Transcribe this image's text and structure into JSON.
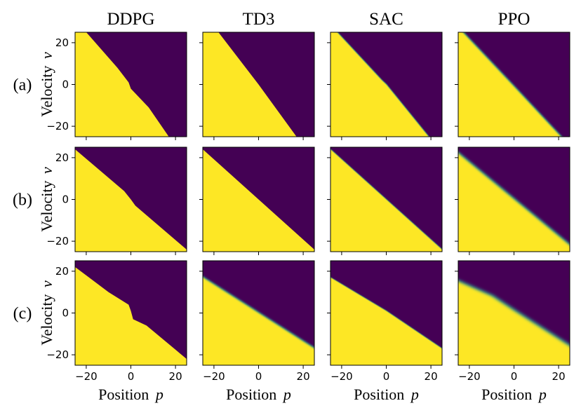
{
  "chart_data": {
    "type": "heatmap",
    "description_colors": {
      "yellow": "#fde725",
      "purple": "#440154",
      "teal": "#2a9d8f"
    },
    "columns": [
      "DDPG",
      "TD3",
      "SAC",
      "PPO"
    ],
    "rows": [
      "(a)",
      "(b)",
      "(c)"
    ],
    "xlabel": "Position",
    "xvar": "p",
    "ylabel": "Velocity",
    "yvar": "v",
    "xlim": [
      -25,
      25
    ],
    "ylim": [
      -25,
      25
    ],
    "xticks": [
      -20,
      0,
      20
    ],
    "yticks": [
      20,
      0,
      -20
    ],
    "xtick_labels": [
      "−20",
      "0",
      "20"
    ],
    "ytick_labels": [
      "20",
      "0",
      "−20"
    ],
    "panels": [
      {
        "row": 0,
        "col": 0,
        "boundary": [
          [
            -20,
            25
          ],
          [
            -6,
            8
          ],
          [
            -1,
            1
          ],
          [
            0,
            -2
          ],
          [
            8,
            -11
          ],
          [
            17,
            -25
          ]
        ],
        "blur": 0.0
      },
      {
        "row": 0,
        "col": 1,
        "boundary": [
          [
            -18,
            25
          ],
          [
            0,
            0
          ],
          [
            17,
            -25
          ]
        ],
        "blur": 0.0
      },
      {
        "row": 0,
        "col": 2,
        "boundary": [
          [
            -22,
            25
          ],
          [
            -2,
            2
          ],
          [
            0,
            0
          ],
          [
            19,
            -25
          ]
        ],
        "blur": 0.4
      },
      {
        "row": 0,
        "col": 3,
        "boundary": [
          [
            -23,
            25
          ],
          [
            0,
            -1
          ],
          [
            21,
            -25
          ]
        ],
        "blur": 0.7
      },
      {
        "row": 1,
        "col": 0,
        "boundary": [
          [
            -25,
            24
          ],
          [
            -3,
            4
          ],
          [
            0,
            0
          ],
          [
            2,
            -3
          ],
          [
            25,
            -24
          ]
        ],
        "blur": 0.0
      },
      {
        "row": 1,
        "col": 1,
        "boundary": [
          [
            -25,
            24
          ],
          [
            0,
            0
          ],
          [
            25,
            -24
          ]
        ],
        "blur": 0.0
      },
      {
        "row": 1,
        "col": 2,
        "boundary": [
          [
            -25,
            24
          ],
          [
            0,
            0
          ],
          [
            25,
            -24
          ]
        ],
        "blur": 0.3
      },
      {
        "row": 1,
        "col": 3,
        "boundary": [
          [
            -25,
            22
          ],
          [
            0,
            0
          ],
          [
            25,
            -22
          ]
        ],
        "blur": 1.0
      },
      {
        "row": 2,
        "col": 0,
        "boundary": [
          [
            -25,
            22
          ],
          [
            -10,
            10
          ],
          [
            -1,
            4
          ],
          [
            0,
            1
          ],
          [
            1,
            -3
          ],
          [
            7,
            -6
          ],
          [
            25,
            -22
          ]
        ],
        "blur": 0.0
      },
      {
        "row": 2,
        "col": 1,
        "boundary": [
          [
            -25,
            17
          ],
          [
            0,
            0
          ],
          [
            25,
            -17
          ]
        ],
        "blur": 0.8
      },
      {
        "row": 2,
        "col": 2,
        "boundary": [
          [
            -25,
            17
          ],
          [
            0,
            1
          ],
          [
            25,
            -17
          ]
        ],
        "blur": 0.3
      },
      {
        "row": 2,
        "col": 3,
        "boundary": [
          [
            -25,
            15
          ],
          [
            -10,
            8
          ],
          [
            0,
            1
          ],
          [
            25,
            -16
          ]
        ],
        "blur": 1.3
      }
    ]
  }
}
